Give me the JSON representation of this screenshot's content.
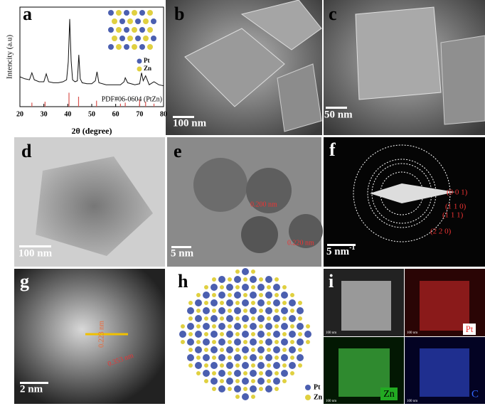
{
  "chart_data": {
    "type": "line",
    "panel_label": "a",
    "y_label": "Intencity (a.u)",
    "x_label": "2θ (degree)",
    "x": [
      20,
      22,
      24,
      25,
      26,
      28,
      30,
      31,
      32,
      34,
      36,
      38,
      39.5,
      40.2,
      40.8,
      41.4,
      42,
      43,
      44,
      44.6,
      45.2,
      46,
      48,
      50,
      51.5,
      52.2,
      53,
      56,
      60,
      62,
      63.5,
      64,
      65,
      68,
      70,
      70.8,
      71.5,
      72.5,
      74,
      76,
      78,
      80
    ],
    "values": [
      30,
      28,
      27,
      34,
      27,
      25,
      25,
      33,
      25,
      24,
      24,
      25,
      27,
      45,
      88,
      46,
      27,
      25,
      26,
      52,
      28,
      24,
      23,
      23,
      26,
      35,
      24,
      22,
      22,
      22,
      25,
      29,
      24,
      22,
      23,
      34,
      26,
      31,
      22,
      25,
      22,
      21
    ],
    "color": "#111111",
    "xlim": [
      20,
      80
    ],
    "ylim": [
      0,
      100
    ],
    "xticks": [
      20,
      30,
      40,
      50,
      60,
      70,
      80
    ],
    "reference": {
      "name": "PDF#06-0604 (PtZn)",
      "color": "#d9534f",
      "x": [
        25,
        30.5,
        40.5,
        44.5,
        52,
        62,
        64,
        70,
        72.5,
        76
      ],
      "values": [
        4,
        5,
        14,
        10,
        6,
        3,
        4,
        7,
        5,
        3
      ]
    },
    "legend": [
      "Pt",
      "Zn"
    ]
  },
  "figure": {
    "panel_labels": [
      "b",
      "c",
      "d",
      "e",
      "f",
      "g",
      "h",
      "i"
    ],
    "scale_bars": {
      "b": "100 nm",
      "c": "50 nm",
      "d": "100 nm",
      "e": "5 nm",
      "f": "5 nm",
      "f_exp": "-1",
      "g": "2 nm",
      "i": "100 nm"
    },
    "e_spacings": [
      "0.200 nm",
      "0.220 nm"
    ],
    "f_planes": [
      "(0 0 1)",
      "(1 1 0)",
      "(1 1 1)",
      "(2 2 0)"
    ],
    "g_spacings": [
      "0.223 nm",
      "0.353 nm"
    ],
    "h_legend": [
      "Pt",
      "Zn"
    ],
    "i_elements": [
      "Pt",
      "Zn",
      "C"
    ]
  }
}
